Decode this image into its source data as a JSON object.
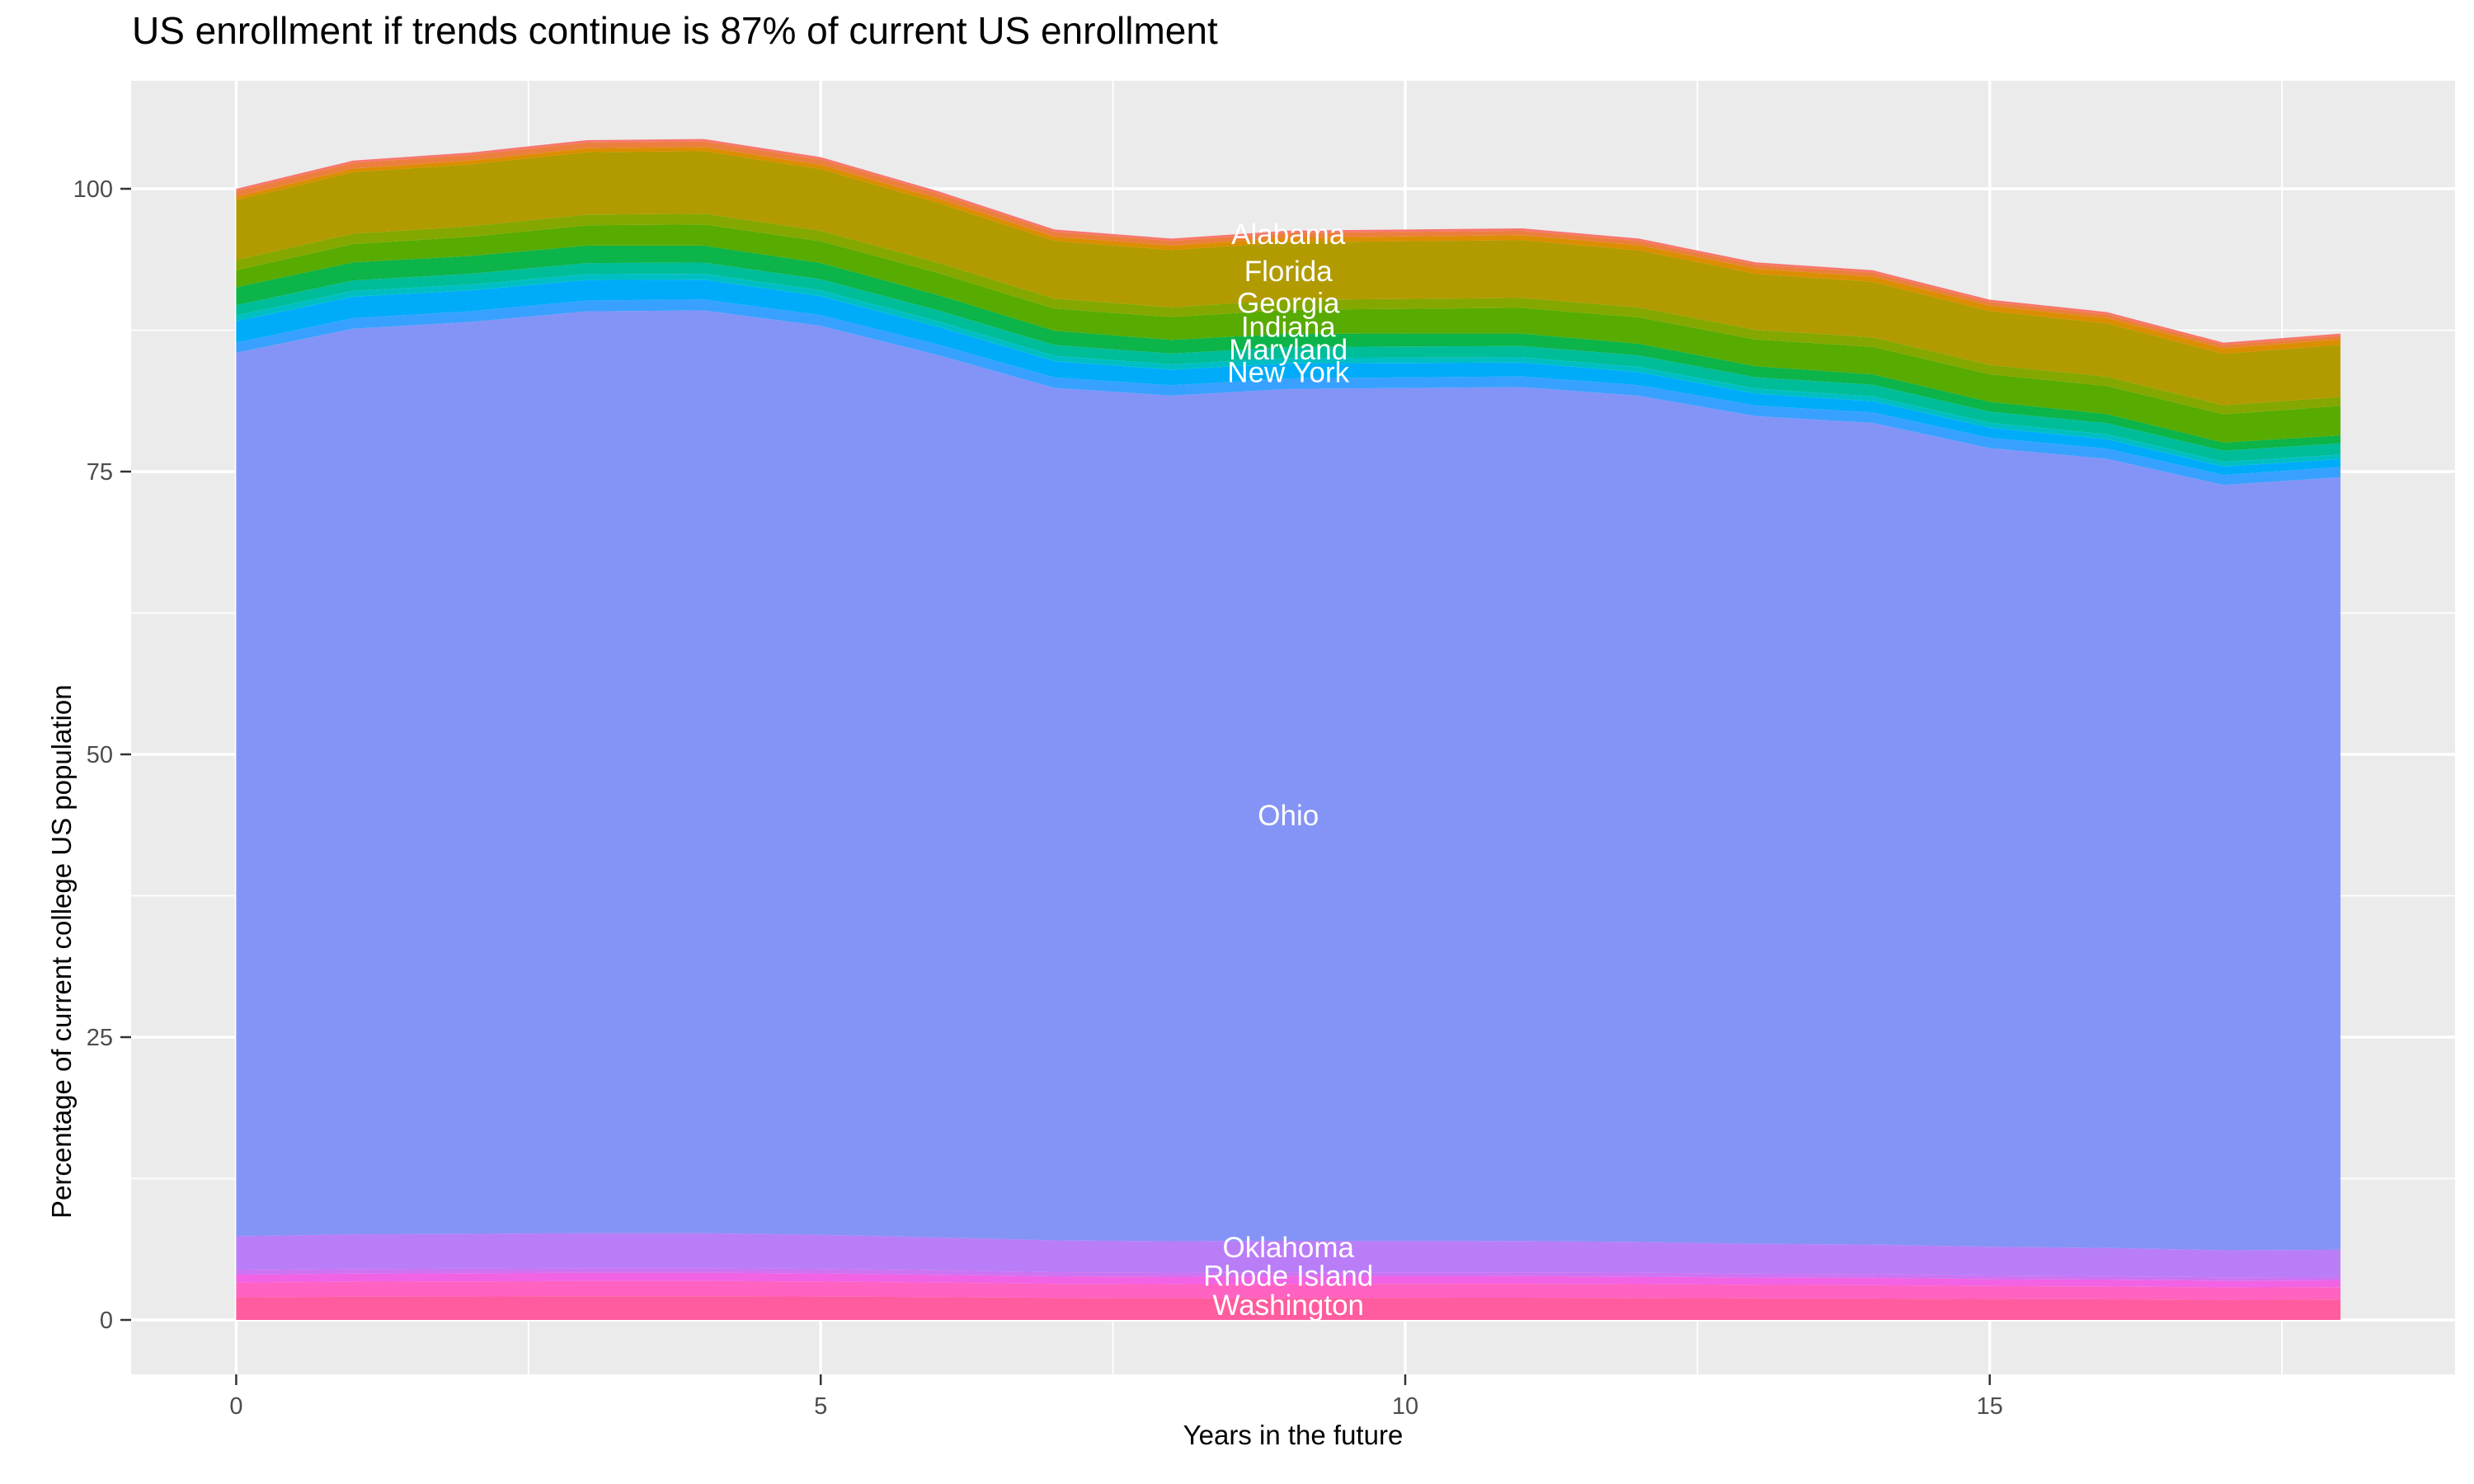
{
  "title": "US enrollment if trends continue is 87% of current US enrollment",
  "axes": {
    "x": {
      "label": "Years in the future",
      "ticks": [
        0,
        5,
        10,
        15
      ],
      "tick_labels": [
        "0",
        "5",
        "10",
        "15"
      ],
      "minor_ticks": [
        2.5,
        7.5,
        12.5,
        17.5
      ],
      "domain": [
        -0.9,
        18.9
      ]
    },
    "y": {
      "label": "Percentage of current college US population",
      "ticks": [
        0,
        25,
        50,
        75,
        100
      ],
      "tick_labels": [
        "0",
        "25",
        "50",
        "75",
        "100"
      ],
      "minor_ticks": [
        12.5,
        37.5,
        62.5,
        87.5
      ],
      "domain": [
        -4.9,
        109.5
      ]
    }
  },
  "colors": {
    "panel_background": "#EBEBEB",
    "gridline": "#FFFFFF",
    "tick_mark": "#333333",
    "tick_text": "#4D4D4D",
    "title_text": "#000000",
    "annotation_text": "#FFFFFF"
  },
  "chart_data": {
    "type": "area",
    "stacked": true,
    "title": "US enrollment if trends continue is 87% of current US enrollment",
    "xlabel": "Years in the future",
    "ylabel": "Percentage of current college US population",
    "xlim": [
      0,
      18
    ],
    "ylim_ticks": [
      0,
      100
    ],
    "grid": true,
    "legend": "none (direct white state labels on areas)",
    "x": [
      0,
      1,
      2,
      3,
      4,
      5,
      6,
      7,
      8,
      9,
      10,
      11,
      12,
      13,
      14,
      15,
      16,
      17,
      18
    ],
    "totals": [
      100,
      102.5,
      103.2,
      104.3,
      104.4,
      102.8,
      99.8,
      96.4,
      95.6,
      96.3,
      96.4,
      96.5,
      95.6,
      93.5,
      92.8,
      90.2,
      89.1,
      86.4,
      87.2
    ],
    "series_note": "Bands bottom-to-top; cum_start/cum_end are cumulative stack tops (% of current enrollment) read at year 0 and year 18; intermediate years scale with totals.",
    "series": [
      {
        "name": "unlabeled-states-below-washington",
        "color": "#FF5C9F",
        "cum_start": 2.0,
        "cum_end": 1.8
      },
      {
        "name": "washington-band",
        "color": "#FF62C1",
        "cum_start": 3.3,
        "cum_end": 2.9
      },
      {
        "name": "rhode-island-band",
        "color": "#F163E4",
        "cum_start": 4.0,
        "cum_end": 3.5
      },
      {
        "name": "unlabeled-states-stripe-violet",
        "color": "#CC74F4",
        "cum_start": 4.4,
        "cum_end": 3.8
      },
      {
        "name": "oklahoma-band",
        "color": "#BA7DF8",
        "cum_start": 7.4,
        "cum_end": 6.2
      },
      {
        "name": "ohio-band",
        "color": "#8494F6",
        "cum_start": 85.5,
        "cum_end": 74.5
      },
      {
        "name": "unlabeled-states-light-blue",
        "color": "#38A1FF",
        "cum_start": 86.4,
        "cum_end": 75.4
      },
      {
        "name": "new-york-band",
        "color": "#00ACFA",
        "cum_start": 88.3,
        "cum_end": 76.1
      },
      {
        "name": "unlabeled-states-teal-stripe",
        "color": "#00BFC4",
        "cum_start": 88.8,
        "cum_end": 76.5
      },
      {
        "name": "maryland-band",
        "color": "#00BD9A",
        "cum_start": 89.7,
        "cum_end": 77.5
      },
      {
        "name": "indiana-band",
        "color": "#0CB449",
        "cum_start": 91.3,
        "cum_end": 78.2
      },
      {
        "name": "georgia-band",
        "color": "#58AB00",
        "cum_start": 92.8,
        "cum_end": 80.8
      },
      {
        "name": "unlabeled-states-yellow-green",
        "color": "#84A800",
        "cum_start": 93.7,
        "cum_end": 81.6
      },
      {
        "name": "florida-band",
        "color": "#B19B00",
        "cum_start": 99.0,
        "cum_end": 86.2
      },
      {
        "name": "unlabeled-states-orange-stripe",
        "color": "#DB8E00",
        "cum_start": 99.3,
        "cum_end": 86.7
      },
      {
        "name": "alabama-band",
        "color": "#EC7F3D",
        "cum_start": 99.8,
        "cum_end": 87.0
      },
      {
        "name": "alabama-top-sliver",
        "color": "#F8766D",
        "cum_start": 100.0,
        "cum_end": 87.2
      }
    ],
    "annotations": [
      {
        "text": "Alabama",
        "x": 9.0,
        "y": 96.0
      },
      {
        "text": "Florida",
        "x": 9.0,
        "y": 92.7
      },
      {
        "text": "Georgia",
        "x": 9.0,
        "y": 89.9
      },
      {
        "text": "Indiana",
        "x": 9.0,
        "y": 87.8
      },
      {
        "text": "Maryland",
        "x": 9.0,
        "y": 85.8
      },
      {
        "text": "New York",
        "x": 9.0,
        "y": 83.8
      },
      {
        "text": "Ohio",
        "x": 9.0,
        "y": 44.6
      },
      {
        "text": "Oklahoma",
        "x": 9.0,
        "y": 6.4
      },
      {
        "text": "Rhode Island",
        "x": 9.0,
        "y": 3.9
      },
      {
        "text": "Washington",
        "x": 9.0,
        "y": 1.3
      }
    ]
  }
}
